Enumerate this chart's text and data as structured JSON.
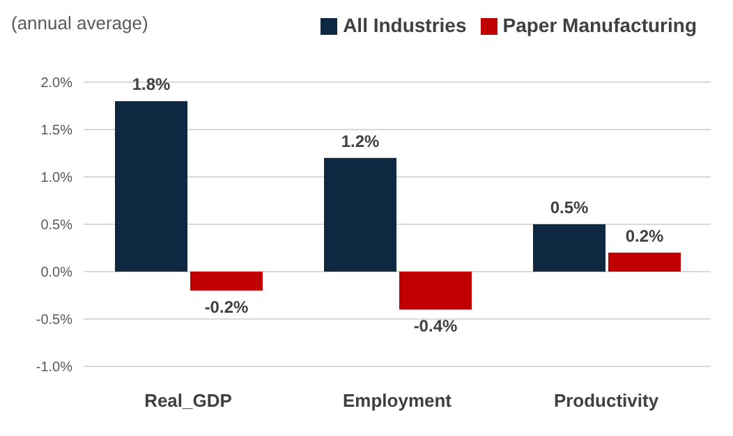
{
  "chart_data": {
    "type": "bar",
    "ylabel": "(annual average)",
    "categories": [
      "Real_GDP",
      "Employment",
      "Productivity"
    ],
    "series": [
      {
        "name": "All Industries",
        "color": "#0e2841",
        "values": [
          1.8,
          1.2,
          0.5
        ],
        "value_labels": [
          "1.8%",
          "1.2%",
          "0.5%"
        ]
      },
      {
        "name": "Paper Manufacturing",
        "color": "#c00000",
        "values": [
          -0.2,
          -0.4,
          0.2
        ],
        "value_labels": [
          "-0.2%",
          "-0.4%",
          "0.2%"
        ]
      }
    ],
    "ylim": [
      -1,
      2
    ],
    "yticks": [
      {
        "value": -1,
        "label": "-1.0%"
      },
      {
        "value": -0.5,
        "label": "-0.5%"
      },
      {
        "value": 0,
        "label": "0.0%"
      },
      {
        "value": 0.5,
        "label": "0.5%"
      },
      {
        "value": 1,
        "label": "1.0%"
      },
      {
        "value": 1.5,
        "label": "1.5%"
      },
      {
        "value": 2,
        "label": "2.0%"
      }
    ],
    "grid": "y",
    "legend": "top right"
  }
}
